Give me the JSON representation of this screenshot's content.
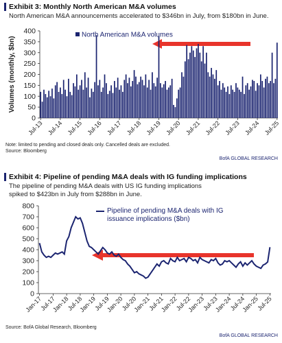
{
  "chart_data": [
    {
      "type": "bar",
      "title": "Exhibit 3: Monthly North American M&A volumes",
      "subtitle": "North American M&A announcements accelerated to $346bn in July, from $180bn in June.",
      "ylabel": "Volumes (monthly, $bn)",
      "note": "Note: limited to pending and closed deals only. Cancelled deals are excluded.",
      "watermark": "BofA GLOBAL RESEARCH",
      "source": "Source: Bloomberg",
      "categories": [
        "Jul-13",
        null,
        null,
        null,
        null,
        null,
        null,
        null,
        null,
        null,
        null,
        null,
        "Jul-14",
        null,
        null,
        null,
        null,
        null,
        null,
        null,
        null,
        null,
        null,
        null,
        "Jul-15",
        null,
        null,
        null,
        null,
        null,
        null,
        null,
        null,
        null,
        null,
        null,
        "Jul-16",
        null,
        null,
        null,
        null,
        null,
        null,
        null,
        null,
        null,
        null,
        null,
        "Jul-17",
        null,
        null,
        null,
        null,
        null,
        null,
        null,
        null,
        null,
        null,
        null,
        "Jul-18",
        null,
        null,
        null,
        null,
        null,
        null,
        null,
        null,
        null,
        null,
        null,
        "Jul-19",
        null,
        null,
        null,
        null,
        null,
        null,
        null,
        null,
        null,
        null,
        null,
        "Jul-20",
        null,
        null,
        null,
        null,
        null,
        null,
        null,
        null,
        null,
        null,
        null,
        "Jul-21",
        null,
        null,
        null,
        null,
        null,
        null,
        null,
        null,
        null,
        null,
        null,
        "Jul-22",
        null,
        null,
        null,
        null,
        null,
        null,
        null,
        null,
        null,
        null,
        null,
        "Jul-23",
        null,
        null,
        null,
        null,
        null,
        null,
        null,
        null,
        null,
        null,
        null,
        "Jul-24",
        null,
        null,
        null,
        null,
        null,
        null,
        null,
        null,
        null,
        null,
        null,
        "Jul-25"
      ],
      "series": [
        {
          "name": "North American M&A volumes",
          "color": "#1b2470",
          "values": [
            120,
            75,
            130,
            110,
            95,
            125,
            100,
            135,
            90,
            150,
            165,
            120,
            140,
            110,
            175,
            130,
            100,
            180,
            120,
            105,
            160,
            145,
            200,
            130,
            150,
            175,
            130,
            210,
            140,
            185,
            95,
            135,
            120,
            165,
            380,
            150,
            175,
            120,
            140,
            200,
            160,
            110,
            125,
            150,
            115,
            170,
            140,
            185,
            130,
            150,
            120,
            175,
            200,
            160,
            185,
            145,
            170,
            220,
            190,
            155,
            165,
            190,
            175,
            150,
            200,
            140,
            175,
            130,
            210,
            160,
            145,
            185,
            375,
            160,
            140,
            155,
            170,
            130,
            140,
            150,
            180,
            60,
            50,
            90,
            130,
            140,
            210,
            190,
            260,
            335,
            270,
            300,
            330,
            310,
            280,
            320,
            340,
            300,
            260,
            330,
            250,
            300,
            210,
            190,
            230,
            200,
            180,
            220,
            150,
            170,
            130,
            160,
            140,
            120,
            145,
            110,
            150,
            130,
            120,
            160,
            140,
            130,
            120,
            190,
            110,
            150,
            160,
            130,
            145,
            175,
            170,
            125,
            160,
            150,
            200,
            170,
            140,
            180,
            190,
            160,
            170,
            300,
            160,
            180,
            346
          ]
        }
      ],
      "ylim": [
        0,
        400
      ],
      "yticks": [
        0,
        50,
        100,
        150,
        200,
        250,
        300,
        350,
        400
      ],
      "grid": false,
      "legend": "top-left"
    },
    {
      "type": "line",
      "title": "Exhibit 4: Pipeline of pending M&A deals with IG funding implications",
      "subtitle": "The pipeline of pending M&A deals with US IG funding implications spiked to $423bn in July from $288bn in June.",
      "source": "Source: BofA Global Research, Bloomberg",
      "watermark": "BofA GLOBAL RESEARCH",
      "categories": [
        "Jan-17",
        null,
        null,
        null,
        null,
        null,
        "Jul-17",
        null,
        null,
        null,
        null,
        null,
        "Jan-18",
        null,
        null,
        null,
        null,
        null,
        "Jul-18",
        null,
        null,
        null,
        null,
        null,
        "Jan-19",
        null,
        null,
        null,
        null,
        null,
        "Jul-19",
        null,
        null,
        null,
        null,
        null,
        "Jan-20",
        null,
        null,
        null,
        null,
        null,
        "Jul-20",
        null,
        null,
        null,
        null,
        null,
        "Jan-21",
        null,
        null,
        null,
        null,
        null,
        "Jul-21",
        null,
        null,
        null,
        null,
        null,
        "Jan-22",
        null,
        null,
        null,
        null,
        null,
        "Jul-22",
        null,
        null,
        null,
        null,
        null,
        "Jan-23",
        null,
        null,
        null,
        null,
        null,
        "Jul-23",
        null,
        null,
        null,
        null,
        null,
        "Jan-24",
        null,
        null,
        null,
        null,
        null,
        "Jul-24",
        null,
        null,
        null,
        null,
        null,
        "Jan-25",
        null,
        null,
        null,
        null,
        null,
        "Jul-25"
      ],
      "series": [
        {
          "name": "Pipeline of pending M&A deals with IG issuance implications ($bn)",
          "color": "#1b2470",
          "values": [
            460,
            380,
            350,
            330,
            340,
            330,
            350,
            370,
            360,
            370,
            380,
            360,
            480,
            520,
            600,
            650,
            700,
            680,
            690,
            640,
            560,
            480,
            430,
            420,
            400,
            380,
            360,
            390,
            420,
            400,
            370,
            360,
            380,
            350,
            340,
            360,
            330,
            310,
            300,
            270,
            250,
            220,
            190,
            200,
            180,
            170,
            160,
            140,
            150,
            180,
            210,
            240,
            270,
            250,
            290,
            300,
            280,
            270,
            320,
            300,
            290,
            330,
            300,
            310,
            320,
            290,
            330,
            320,
            300,
            310,
            280,
            330,
            310,
            300,
            290,
            280,
            310,
            300,
            320,
            280,
            260,
            270,
            300,
            290,
            300,
            280,
            260,
            240,
            270,
            290,
            250,
            280,
            260,
            280,
            300,
            270,
            250,
            240,
            230,
            260,
            270,
            288,
            423
          ]
        }
      ],
      "ylim": [
        0,
        800
      ],
      "yticks": [
        0,
        100,
        200,
        300,
        400,
        500,
        600,
        700,
        800
      ],
      "grid": false,
      "legend": "top-left"
    }
  ]
}
